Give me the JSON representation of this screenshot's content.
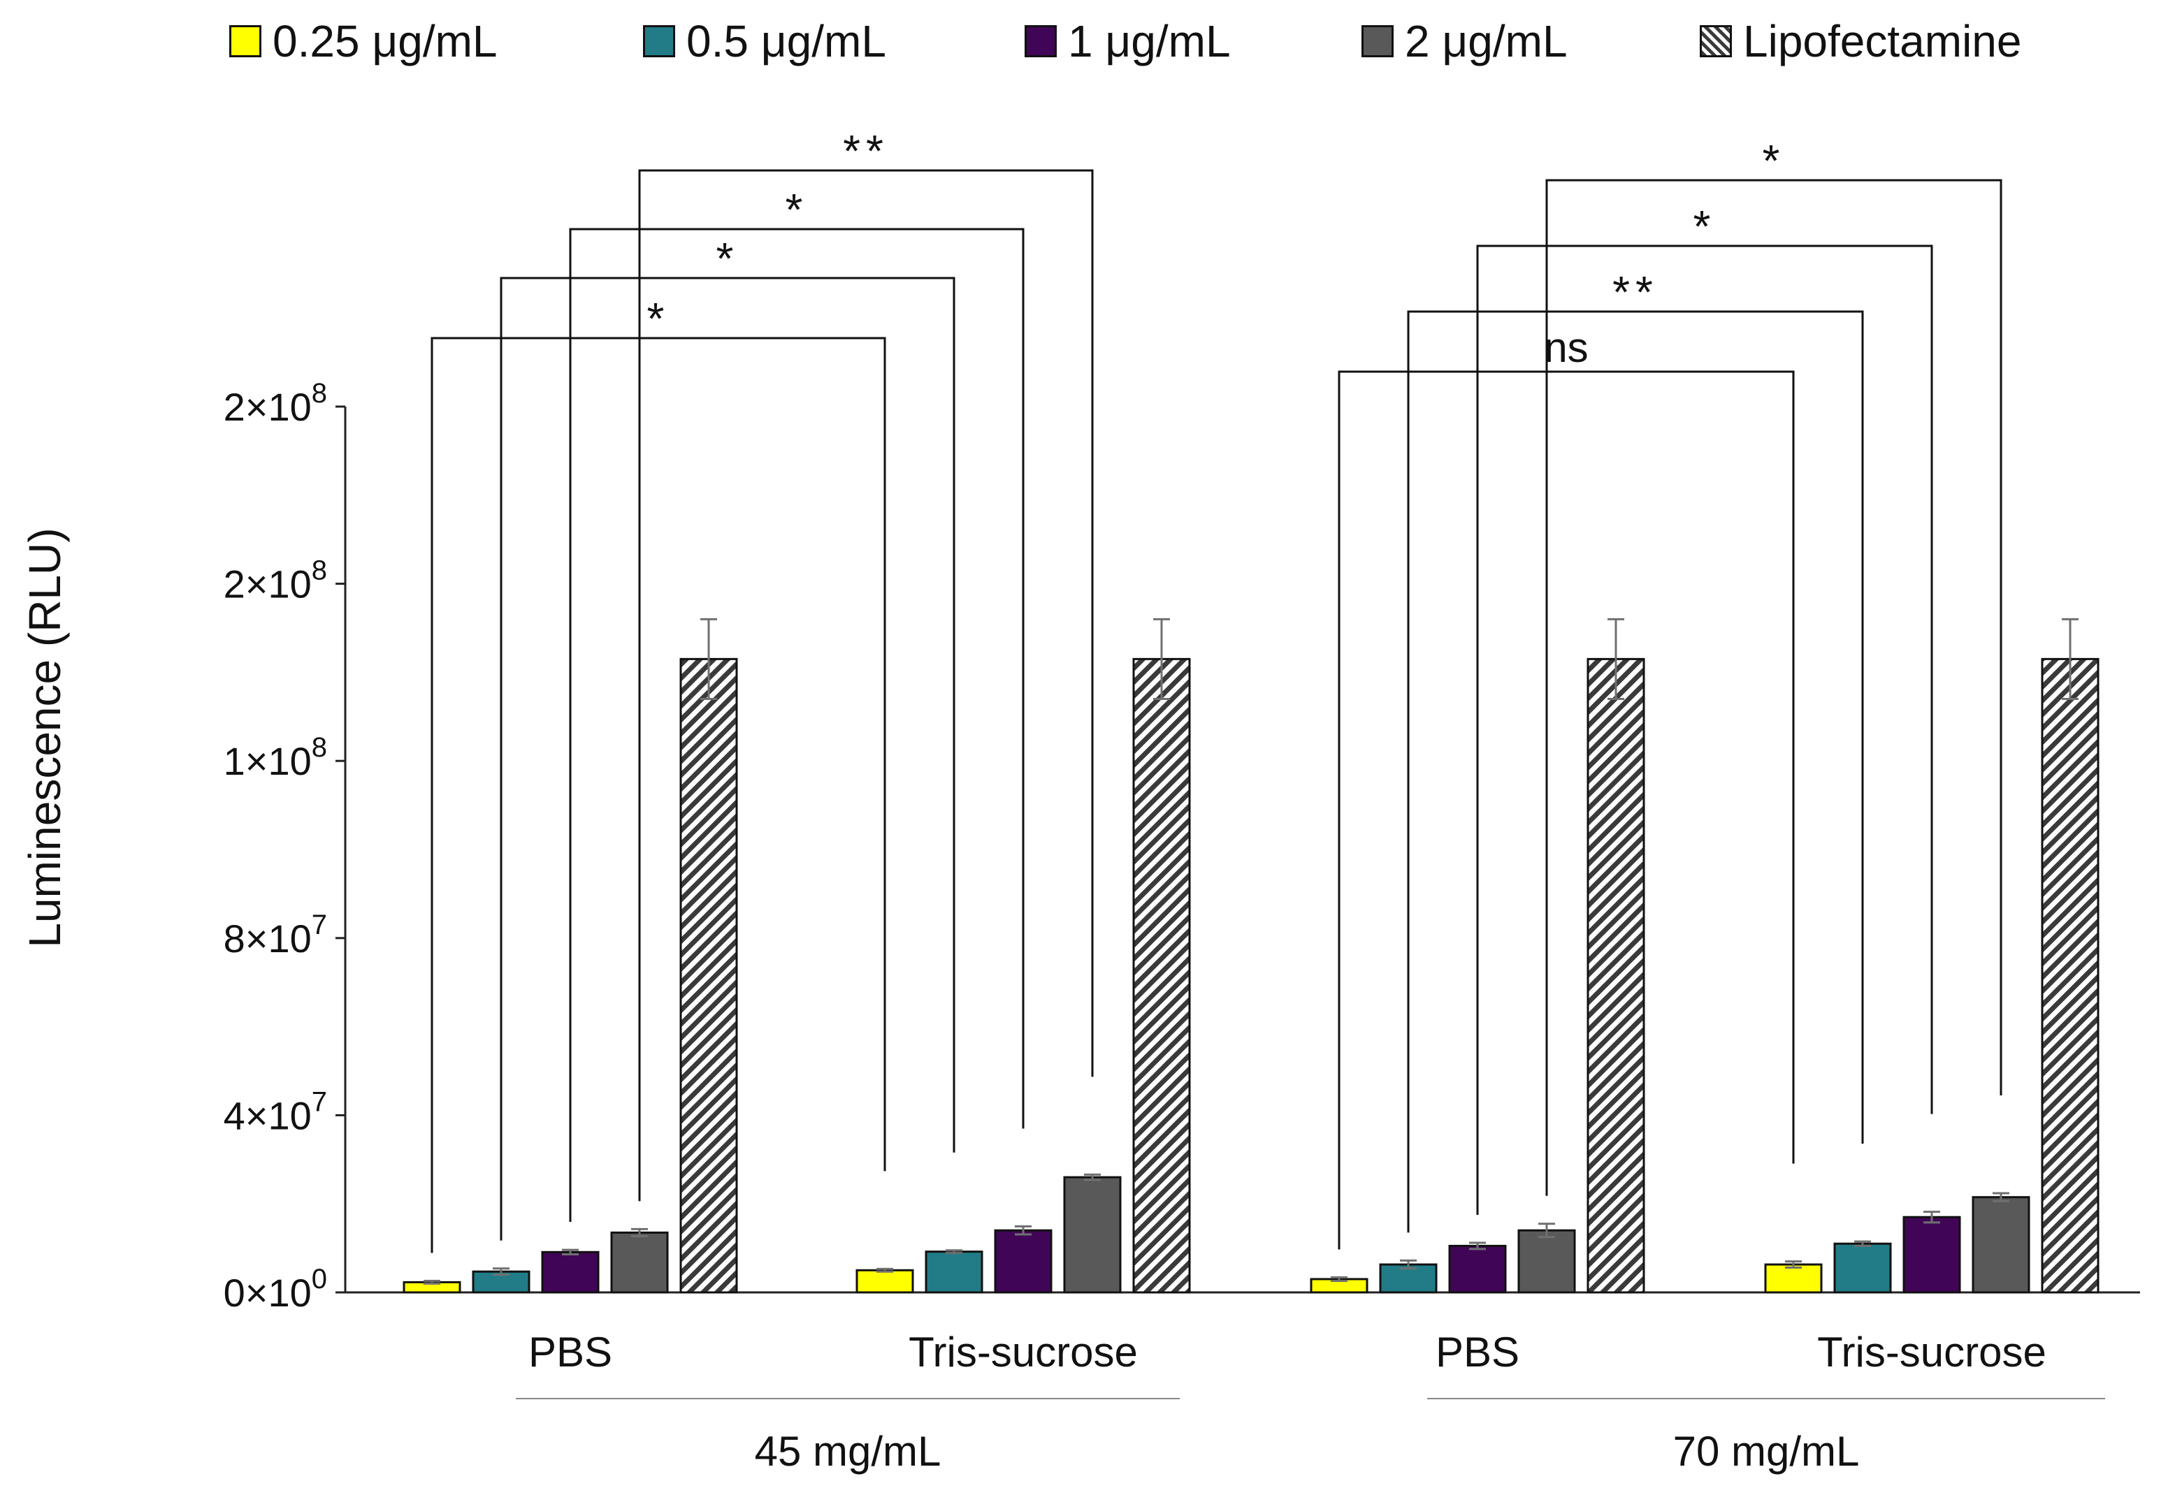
{
  "colors": {
    "s0": "#ffff00",
    "s1": "#217c88",
    "s2": "#410557",
    "s3": "#595959",
    "s4": "hatch",
    "axis": "#222222",
    "error_bar": "#707070"
  },
  "legend": [
    {
      "label": "0.25 μg/mL",
      "swatch": "#ffff00"
    },
    {
      "label": "0.5 μg/mL",
      "swatch": "#217c88"
    },
    {
      "label": "1 μg/mL",
      "swatch": "#410557"
    },
    {
      "label": "2 μg/mL",
      "swatch": "#595959"
    },
    {
      "label": "Lipofectamine",
      "swatch": "hatch"
    }
  ],
  "chart_data": {
    "type": "bar",
    "title": "",
    "ylabel": "Luminescence (RLU)",
    "xlabel": "",
    "ylim": [
      0,
      200000000
    ],
    "yticks": [
      0,
      40000000,
      80000000,
      120000000,
      160000000,
      200000000
    ],
    "ytick_labels": [
      {
        "base": "0×10",
        "exp": "0"
      },
      {
        "base": "4×10",
        "exp": "7"
      },
      {
        "base": "8×10",
        "exp": "7"
      },
      {
        "base": "1×10",
        "exp": "8"
      },
      {
        "base": "2×10",
        "exp": "8"
      },
      {
        "base": "2×10",
        "exp": "8"
      }
    ],
    "grid": false,
    "legend_position": "top",
    "categories": [
      "PBS",
      "Tris-sucrose",
      "PBS",
      "Tris-sucrose"
    ],
    "groups": [
      {
        "label": "45 mg/mL",
        "categories": [
          0,
          1
        ]
      },
      {
        "label": "70 mg/mL",
        "categories": [
          2,
          3
        ]
      }
    ],
    "series": [
      {
        "name": "0.25 μg/mL",
        "values": [
          2300000,
          5000000,
          3000000,
          6300000
        ],
        "errors": [
          300000,
          300000,
          400000,
          700000
        ]
      },
      {
        "name": "0.5 μg/mL",
        "values": [
          4700000,
          9200000,
          6300000,
          11000000
        ],
        "errors": [
          700000,
          300000,
          900000,
          500000
        ]
      },
      {
        "name": "1 μg/mL",
        "values": [
          9100000,
          14000000,
          10500000,
          17000000
        ],
        "errors": [
          500000,
          900000,
          700000,
          1200000
        ]
      },
      {
        "name": "2 μg/mL",
        "values": [
          13500000,
          26000000,
          14000000,
          21500000
        ],
        "errors": [
          800000,
          600000,
          1500000,
          900000
        ]
      },
      {
        "name": "Lipofectamine",
        "values": [
          143000000,
          143000000,
          143000000,
          143000000
        ],
        "errors": [
          9000000,
          9000000,
          9000000,
          9000000
        ]
      }
    ],
    "significance": [
      {
        "label": "*",
        "from": [
          0,
          0
        ],
        "to": [
          1,
          0
        ]
      },
      {
        "label": "*",
        "from": [
          0,
          1
        ],
        "to": [
          1,
          1
        ]
      },
      {
        "label": "*",
        "from": [
          0,
          2
        ],
        "to": [
          1,
          2
        ]
      },
      {
        "label": "**",
        "from": [
          0,
          3
        ],
        "to": [
          1,
          3
        ]
      },
      {
        "label": "ns",
        "from": [
          2,
          0
        ],
        "to": [
          3,
          0
        ]
      },
      {
        "label": "**",
        "from": [
          2,
          1
        ],
        "to": [
          3,
          1
        ]
      },
      {
        "label": "*",
        "from": [
          2,
          2
        ],
        "to": [
          3,
          2
        ]
      },
      {
        "label": "*",
        "from": [
          2,
          3
        ],
        "to": [
          3,
          3
        ]
      }
    ]
  }
}
